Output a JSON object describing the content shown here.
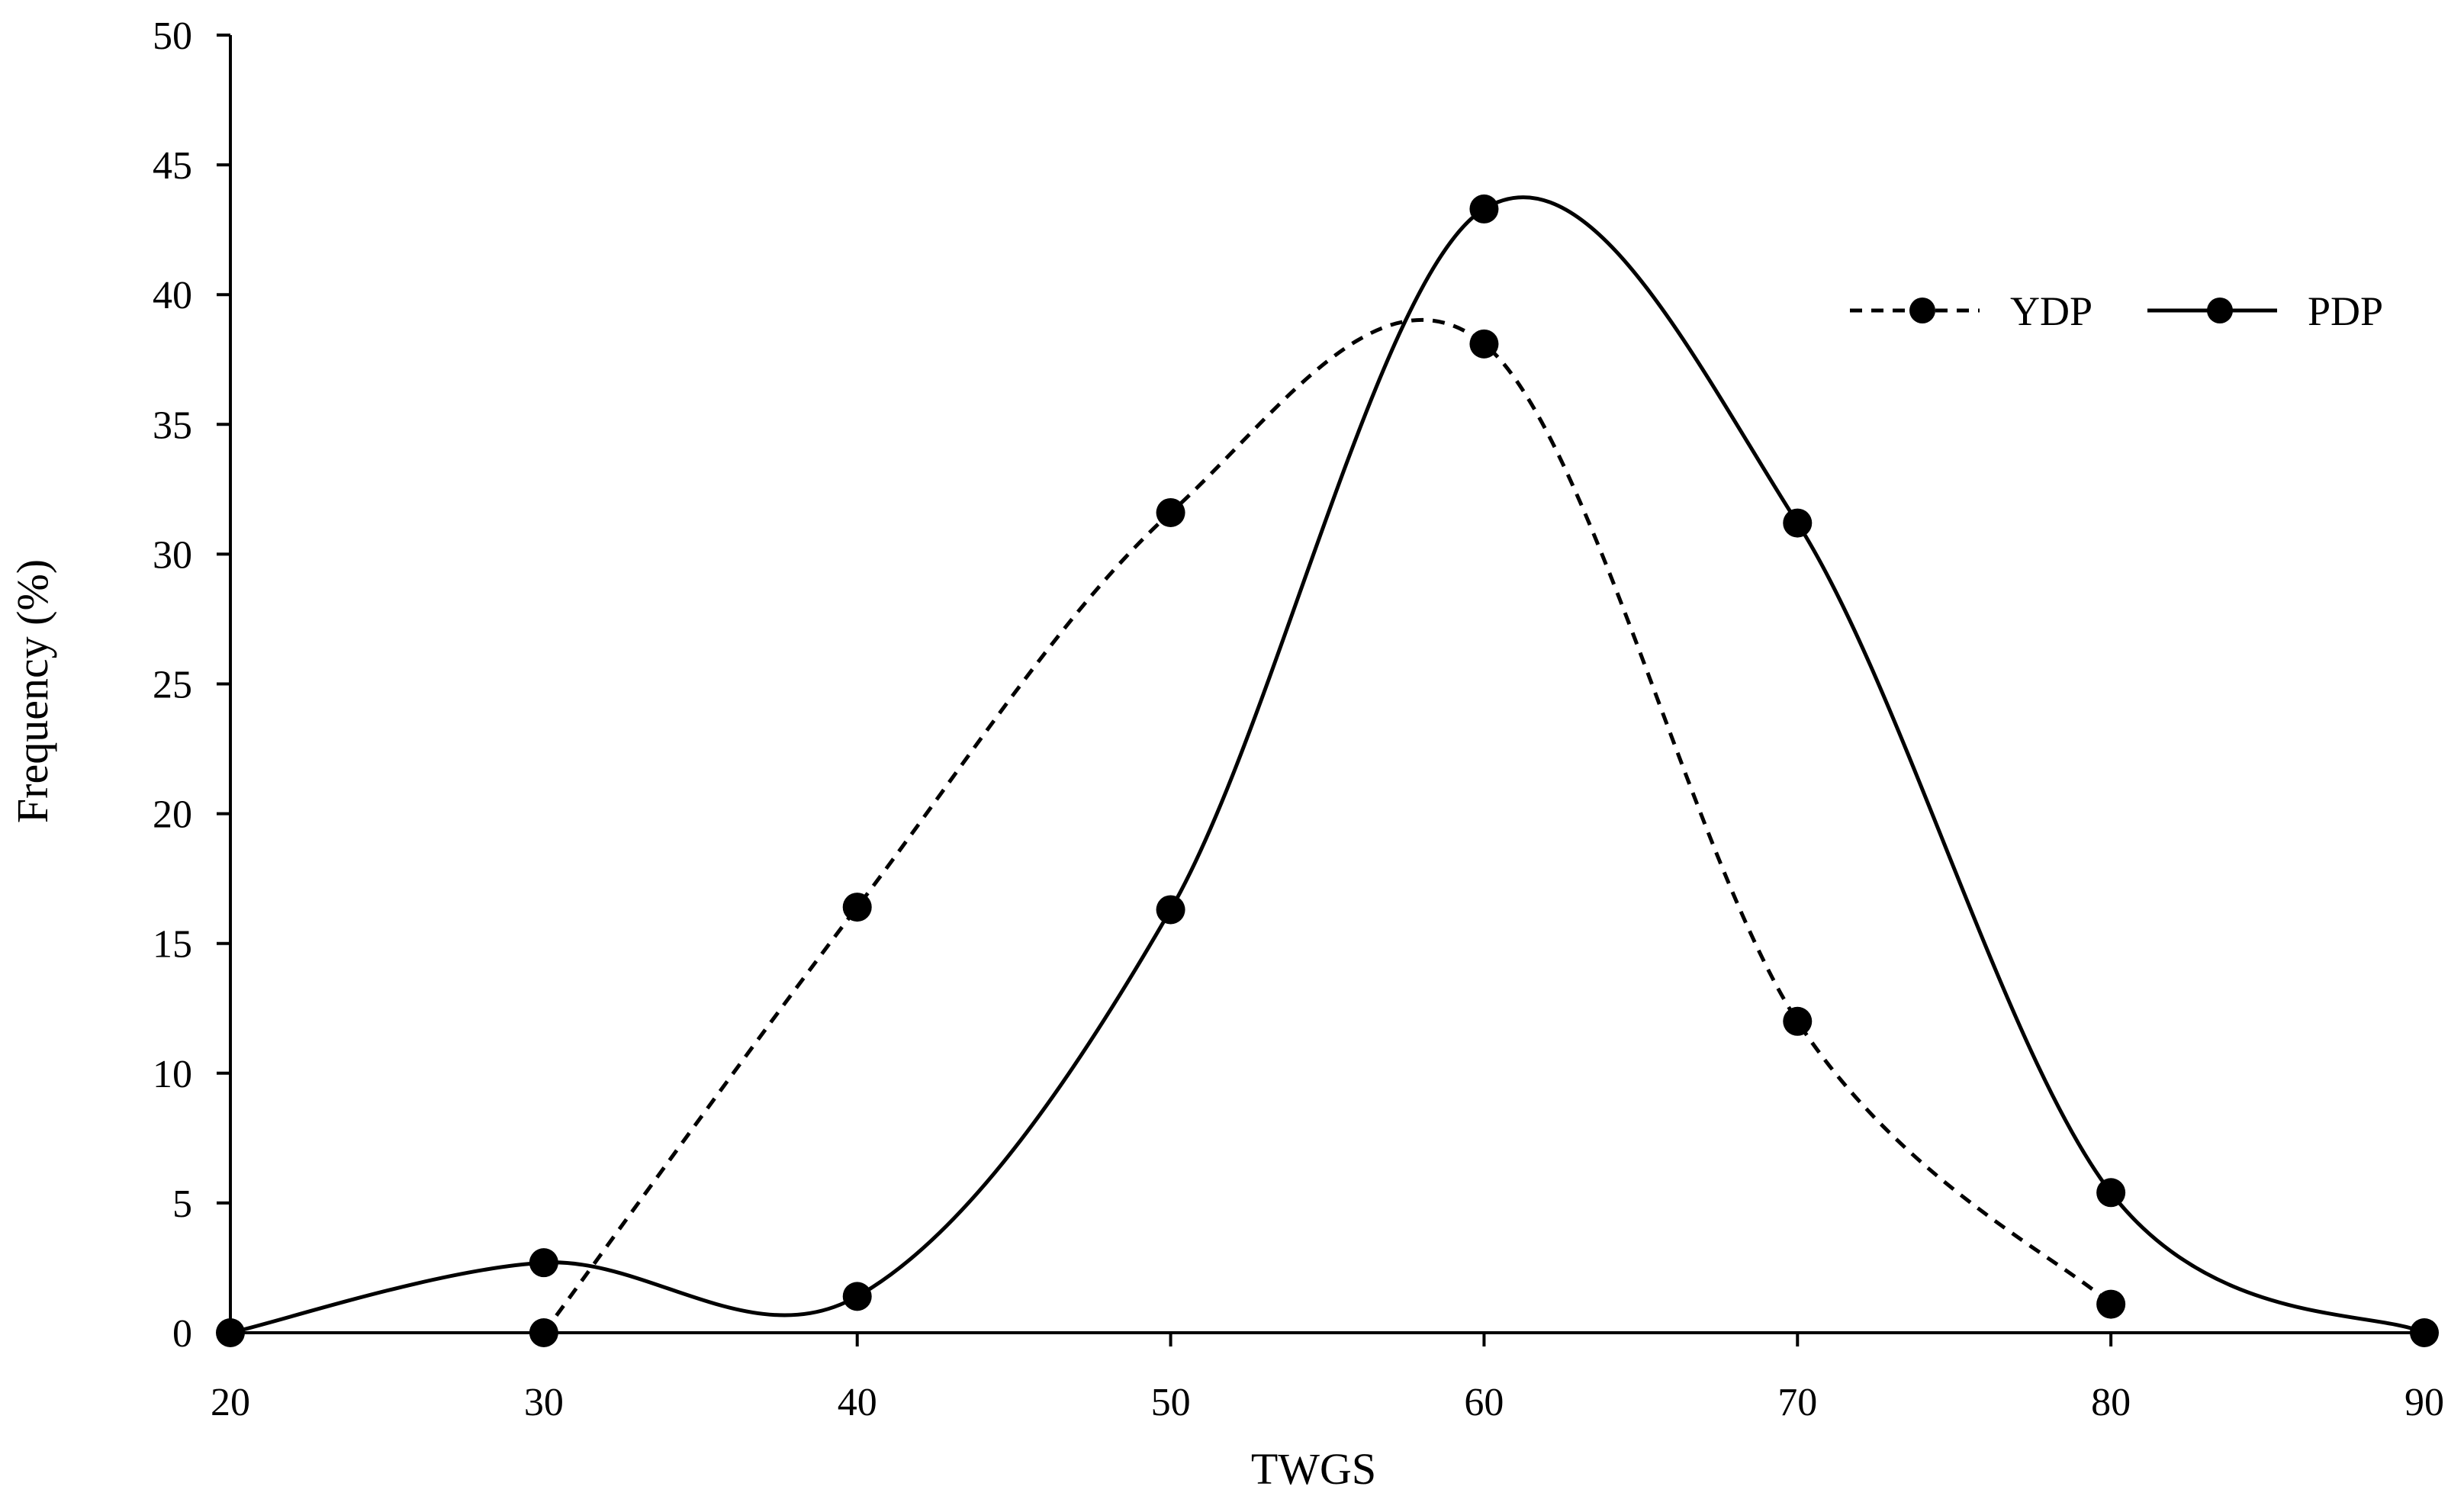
{
  "chart_data": {
    "type": "line",
    "title": "",
    "xlabel": "TWGS",
    "ylabel": "Frequency (%)",
    "xlim": [
      20,
      90
    ],
    "ylim": [
      0,
      50
    ],
    "x_ticks": [
      20,
      30,
      40,
      50,
      60,
      70,
      80,
      90
    ],
    "y_ticks": [
      0,
      5,
      10,
      15,
      20,
      25,
      30,
      35,
      40,
      45,
      50
    ],
    "grid": false,
    "smooth": true,
    "legend_position": "top-right",
    "series": [
      {
        "name": "YDP",
        "style": "dashed",
        "color": "#000000",
        "x": [
          30,
          40,
          50,
          60,
          70,
          80
        ],
        "values": [
          0,
          16.4,
          31.6,
          38.1,
          12.0,
          1.1
        ]
      },
      {
        "name": "PDP",
        "style": "solid",
        "color": "#000000",
        "x": [
          20,
          30,
          40,
          50,
          60,
          70,
          80,
          90
        ],
        "values": [
          0,
          2.7,
          1.4,
          16.3,
          43.3,
          31.2,
          5.4,
          0
        ]
      }
    ]
  }
}
